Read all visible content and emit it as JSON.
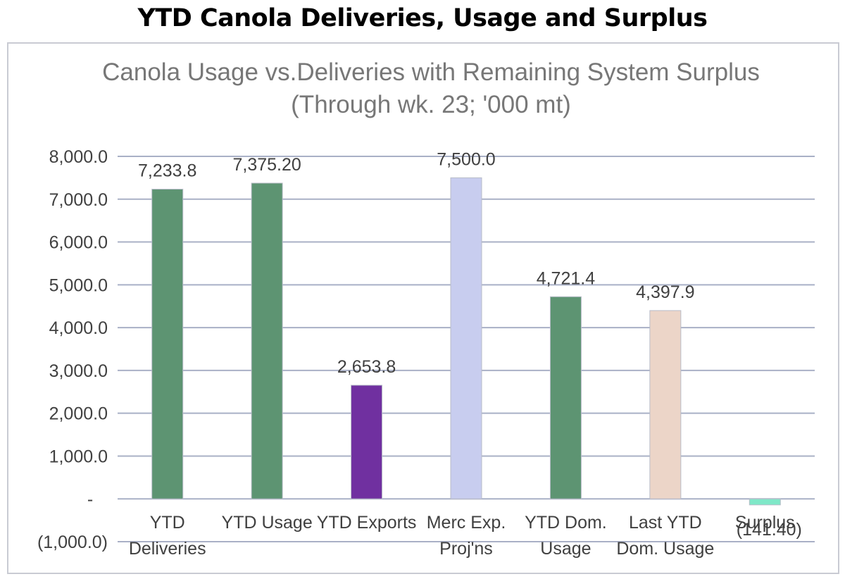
{
  "page_title": "YTD Canola Deliveries, Usage and Surplus",
  "chart_data": {
    "type": "bar",
    "title_lines": [
      "Canola Usage vs.Deliveries with Remaining System Surplus",
      "(Through wk. 23; '000 mt)"
    ],
    "categories": [
      [
        "YTD",
        "Deliveries"
      ],
      [
        "YTD Usage"
      ],
      [
        "YTD Exports"
      ],
      [
        "Merc Exp.",
        "Proj'ns"
      ],
      [
        "YTD Dom.",
        "Usage"
      ],
      [
        "Last YTD",
        "Dom. Usage"
      ],
      [
        "Surplus"
      ]
    ],
    "values": [
      7233.8,
      7375.2,
      2653.8,
      7500.0,
      4721.4,
      4397.9,
      -141.4
    ],
    "value_labels": [
      "7,233.8",
      "7,375.20",
      "2,653.8",
      "7,500.0",
      "4,721.4",
      "4,397.9",
      "(141.40)"
    ],
    "colors": [
      "#5d9472",
      "#5d9472",
      "#7030a0",
      "#c8cdef",
      "#5d9472",
      "#ecd5c8",
      "#7fe8c8"
    ],
    "ylim": [
      -1000,
      8000
    ],
    "yticks": [
      -1000,
      0,
      1000,
      2000,
      3000,
      4000,
      5000,
      6000,
      7000,
      8000
    ],
    "ytick_labels": [
      "(1,000.0)",
      "-",
      "1,000.0",
      "2,000.0",
      "3,000.0",
      "4,000.0",
      "5,000.0",
      "6,000.0",
      "7,000.0",
      "8,000.0"
    ],
    "grid": true,
    "xlabel": "",
    "ylabel": ""
  }
}
